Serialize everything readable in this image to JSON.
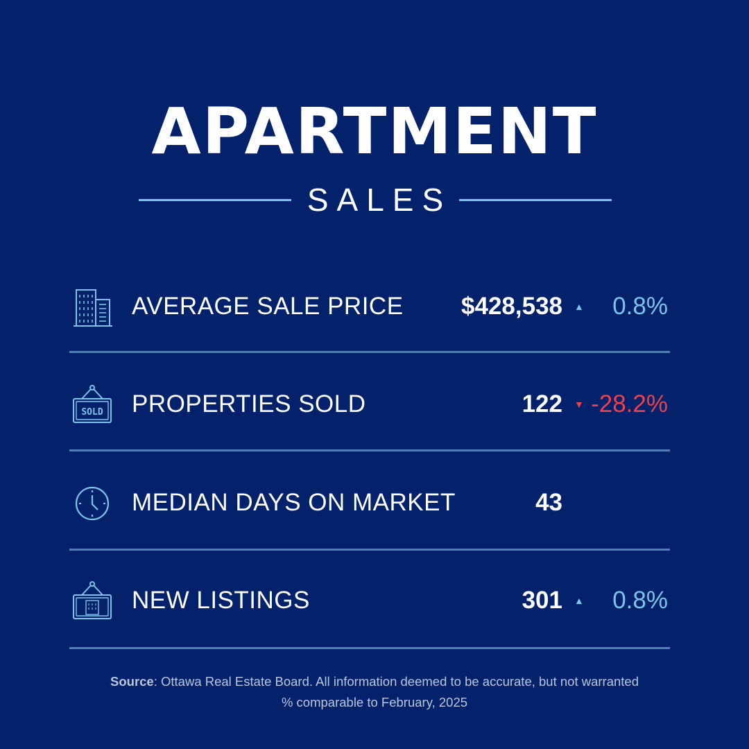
{
  "header": {
    "title": "APARTMENT",
    "subtitle": "SALES"
  },
  "colors": {
    "background": "#04226b",
    "accent": "#7cc4ea",
    "negative": "#f0414b",
    "divider": "#4f7fb6"
  },
  "stats": [
    {
      "icon": "building-icon",
      "label": "AVERAGE SALE PRICE",
      "value": "$428,538",
      "trend": "up",
      "arrow": "▲",
      "change": "0.8%"
    },
    {
      "icon": "sold-sign-icon",
      "sign_text": "SOLD",
      "label": "PROPERTIES SOLD",
      "value": "122",
      "trend": "down",
      "arrow": "▼",
      "change": "-28.2%"
    },
    {
      "icon": "clock-icon",
      "label": "MEDIAN DAYS ON MARKET",
      "value": "43"
    },
    {
      "icon": "listing-sign-icon",
      "label": "NEW LISTINGS",
      "value": "301",
      "trend": "up",
      "arrow": "▲",
      "change": "0.8%"
    }
  ],
  "footer": {
    "source_label": "Source",
    "source_text": ": Ottawa Real Estate Board. All information deemed to be accurate, but not warranted",
    "comparison": "% comparable to February, 2025"
  }
}
